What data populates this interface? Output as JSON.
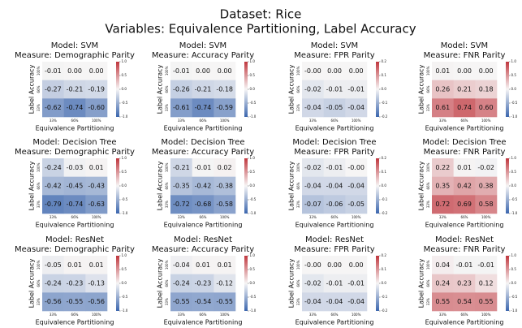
{
  "title": "Dataset: Rice",
  "subtitle": "Variables: Equivalence Partitioning, Label Accuracy",
  "chart_data": [
    {
      "type": "heatmap",
      "title": "Model: SVM",
      "subtitle": "Measure: Demographic Parity",
      "x_label": "Equivalence Partitioning",
      "y_label": "Label Accuracy",
      "x_categories": [
        "33%",
        "66%",
        "100%"
      ],
      "y_categories": [
        "100%",
        "66%",
        "33%"
      ],
      "values": [
        [
          -0.01,
          0,
          0
        ],
        [
          -0.27,
          -0.21,
          -0.19
        ],
        [
          -0.62,
          -0.74,
          -0.6
        ]
      ],
      "value_labels": [
        [
          "-0.01",
          "0.00",
          "0.00"
        ],
        [
          "-0.27",
          "-0.21",
          "-0.19"
        ],
        [
          "-0.62",
          "-0.74",
          "-0.60"
        ]
      ],
      "zlim": [
        -1,
        1
      ],
      "zticks": [
        {
          "value": 1,
          "label": "1.0"
        },
        {
          "value": 0.5,
          "label": "0.5"
        },
        {
          "value": 0,
          "label": "0.0"
        },
        {
          "value": -0.5,
          "label": "-0.5"
        },
        {
          "value": -1,
          "label": "-1.0"
        }
      ],
      "colors": [
        "#3b66ae",
        "#f6f5f5",
        "#c0363d"
      ]
    },
    {
      "type": "heatmap",
      "title": "Model: SVM",
      "subtitle": "Measure: Accuracy Parity",
      "x_label": "Equivalence Partitioning",
      "y_label": "Label Accuracy",
      "x_categories": [
        "33%",
        "66%",
        "100%"
      ],
      "y_categories": [
        "100%",
        "66%",
        "33%"
      ],
      "values": [
        [
          -0.01,
          0,
          0
        ],
        [
          -0.26,
          -0.21,
          -0.18
        ],
        [
          -0.61,
          -0.74,
          -0.59
        ]
      ],
      "value_labels": [
        [
          "-0.01",
          "0.00",
          "0.00"
        ],
        [
          "-0.26",
          "-0.21",
          "-0.18"
        ],
        [
          "-0.61",
          "-0.74",
          "-0.59"
        ]
      ],
      "zlim": [
        -1,
        1
      ],
      "zticks": [
        {
          "value": 1,
          "label": "1.0"
        },
        {
          "value": 0.5,
          "label": "0.5"
        },
        {
          "value": 0,
          "label": "0.0"
        },
        {
          "value": -0.5,
          "label": "-0.5"
        },
        {
          "value": -1,
          "label": "-1.0"
        }
      ],
      "colors": [
        "#3b66ae",
        "#f6f5f5",
        "#c0363d"
      ]
    },
    {
      "type": "heatmap",
      "title": "Model: SVM",
      "subtitle": "Measure: FPR Parity",
      "x_label": "Equivalence Partitioning",
      "y_label": "Label Accuracy",
      "x_categories": [
        "33%",
        "66%",
        "100%"
      ],
      "y_categories": [
        "100%",
        "66%",
        "33%"
      ],
      "values": [
        [
          0,
          0,
          0
        ],
        [
          -0.02,
          -0.01,
          -0.01
        ],
        [
          -0.04,
          -0.05,
          -0.04
        ]
      ],
      "value_labels": [
        [
          "-0.00",
          "0.00",
          "0.00"
        ],
        [
          "-0.02",
          "-0.01",
          "-0.01"
        ],
        [
          "-0.04",
          "-0.05",
          "-0.04"
        ]
      ],
      "zlim": [
        -0.2,
        0.2
      ],
      "zticks": [
        0.2,
        0.1,
        {
          "value": 0,
          "label": "0.0"
        },
        -0.1,
        -0.2
      ],
      "colors": [
        "#3b66ae",
        "#f6f5f5",
        "#c0363d"
      ]
    },
    {
      "type": "heatmap",
      "title": "Model: SVM",
      "subtitle": "Measure: FNR Parity",
      "x_label": "Equivalence Partitioning",
      "y_label": "Label Accuracy",
      "x_categories": [
        "33%",
        "66%",
        "100%"
      ],
      "y_categories": [
        "100%",
        "66%",
        "33%"
      ],
      "values": [
        [
          0.01,
          0,
          0
        ],
        [
          0.26,
          0.21,
          0.18
        ],
        [
          0.61,
          0.74,
          0.6
        ]
      ],
      "value_labels": [
        [
          "0.01",
          "0.00",
          "0.00"
        ],
        [
          "0.26",
          "0.21",
          "0.18"
        ],
        [
          "0.61",
          "0.74",
          "0.60"
        ]
      ],
      "zlim": [
        -1,
        1
      ],
      "zticks": [
        {
          "value": 1,
          "label": "1.0"
        },
        {
          "value": 0.5,
          "label": "0.5"
        },
        {
          "value": 0,
          "label": "0.0"
        },
        {
          "value": -0.5,
          "label": "-0.5"
        },
        {
          "value": -1,
          "label": "-1.0"
        }
      ],
      "colors": [
        "#3b66ae",
        "#f6f5f5",
        "#c0363d"
      ]
    },
    {
      "type": "heatmap",
      "title": "Model: Decision Tree",
      "subtitle": "Measure: Demographic Parity",
      "x_label": "Equivalence Partitioning",
      "y_label": "Label Accuracy",
      "x_categories": [
        "33%",
        "66%",
        "100%"
      ],
      "y_categories": [
        "100%",
        "66%",
        "33%"
      ],
      "values": [
        [
          -0.24,
          -0.03,
          0.01
        ],
        [
          -0.42,
          -0.45,
          -0.43
        ],
        [
          -0.79,
          -0.74,
          -0.63
        ]
      ],
      "value_labels": [
        [
          "-0.24",
          "-0.03",
          "0.01"
        ],
        [
          "-0.42",
          "-0.45",
          "-0.43"
        ],
        [
          "-0.79",
          "-0.74",
          "-0.63"
        ]
      ],
      "zlim": [
        -1,
        1
      ],
      "zticks": [
        {
          "value": 1,
          "label": "1.0"
        },
        {
          "value": 0.5,
          "label": "0.5"
        },
        {
          "value": 0,
          "label": "0.0"
        },
        {
          "value": -0.5,
          "label": "-0.5"
        },
        {
          "value": -1,
          "label": "-1.0"
        }
      ],
      "colors": [
        "#3b66ae",
        "#f6f5f5",
        "#c0363d"
      ]
    },
    {
      "type": "heatmap",
      "title": "Model: Decision Tree",
      "subtitle": "Measure: Accuracy Parity",
      "x_label": "Equivalence Partitioning",
      "y_label": "Label Accuracy",
      "x_categories": [
        "33%",
        "66%",
        "100%"
      ],
      "y_categories": [
        "100%",
        "66%",
        "33%"
      ],
      "values": [
        [
          -0.21,
          -0.01,
          0.02
        ],
        [
          -0.35,
          -0.42,
          -0.38
        ],
        [
          -0.72,
          -0.68,
          -0.58
        ]
      ],
      "value_labels": [
        [
          "-0.21",
          "-0.01",
          "0.02"
        ],
        [
          "-0.35",
          "-0.42",
          "-0.38"
        ],
        [
          "-0.72",
          "-0.68",
          "-0.58"
        ]
      ],
      "zlim": [
        -1,
        1
      ],
      "zticks": [
        {
          "value": 1,
          "label": "1.0"
        },
        {
          "value": 0.5,
          "label": "0.5"
        },
        {
          "value": 0,
          "label": "0.0"
        },
        {
          "value": -0.5,
          "label": "-0.5"
        },
        {
          "value": -1,
          "label": "-1.0"
        }
      ],
      "colors": [
        "#3b66ae",
        "#f6f5f5",
        "#c0363d"
      ]
    },
    {
      "type": "heatmap",
      "title": "Model: Decision Tree",
      "subtitle": "Measure: FPR Parity",
      "x_label": "Equivalence Partitioning",
      "y_label": "Label Accuracy",
      "x_categories": [
        "33%",
        "66%",
        "100%"
      ],
      "y_categories": [
        "100%",
        "66%",
        "33%"
      ],
      "values": [
        [
          -0.02,
          -0.01,
          0
        ],
        [
          -0.04,
          -0.04,
          -0.04
        ],
        [
          -0.07,
          -0.06,
          -0.05
        ]
      ],
      "value_labels": [
        [
          "-0.02",
          "-0.01",
          "-0.00"
        ],
        [
          "-0.04",
          "-0.04",
          "-0.04"
        ],
        [
          "-0.07",
          "-0.06",
          "-0.05"
        ]
      ],
      "zlim": [
        -0.2,
        0.2
      ],
      "zticks": [
        0.2,
        0.1,
        {
          "value": 0,
          "label": "0.0"
        },
        -0.1,
        -0.2
      ],
      "colors": [
        "#3b66ae",
        "#f6f5f5",
        "#c0363d"
      ]
    },
    {
      "type": "heatmap",
      "title": "Model: Decision Tree",
      "subtitle": "Measure: FNR Parity",
      "x_label": "Equivalence Partitioning",
      "y_label": "Label Accuracy",
      "x_categories": [
        "33%",
        "66%",
        "100%"
      ],
      "y_categories": [
        "100%",
        "66%",
        "33%"
      ],
      "values": [
        [
          0.22,
          0.01,
          -0.02
        ],
        [
          0.35,
          0.42,
          0.38
        ],
        [
          0.72,
          0.69,
          0.58
        ]
      ],
      "value_labels": [
        [
          "0.22",
          "0.01",
          "-0.02"
        ],
        [
          "0.35",
          "0.42",
          "0.38"
        ],
        [
          "0.72",
          "0.69",
          "0.58"
        ]
      ],
      "zlim": [
        -1,
        1
      ],
      "zticks": [
        {
          "value": 1,
          "label": "1.0"
        },
        {
          "value": 0.5,
          "label": "0.5"
        },
        {
          "value": 0,
          "label": "0.0"
        },
        {
          "value": -0.5,
          "label": "-0.5"
        },
        {
          "value": -1,
          "label": "-1.0"
        }
      ],
      "colors": [
        "#3b66ae",
        "#f6f5f5",
        "#c0363d"
      ]
    },
    {
      "type": "heatmap",
      "title": "Model: ResNet",
      "subtitle": "Measure: Demographic Parity",
      "x_label": "Equivalence Partitioning",
      "y_label": "Label Accuracy",
      "x_categories": [
        "33%",
        "66%",
        "100%"
      ],
      "y_categories": [
        "100%",
        "66%",
        "33%"
      ],
      "values": [
        [
          -0.05,
          0.01,
          0.01
        ],
        [
          -0.24,
          -0.23,
          -0.13
        ],
        [
          -0.56,
          -0.55,
          -0.56
        ]
      ],
      "value_labels": [
        [
          "-0.05",
          "0.01",
          "0.01"
        ],
        [
          "-0.24",
          "-0.23",
          "-0.13"
        ],
        [
          "-0.56",
          "-0.55",
          "-0.56"
        ]
      ],
      "zlim": [
        -1,
        1
      ],
      "zticks": [
        {
          "value": 1,
          "label": "1.0"
        },
        {
          "value": 0.5,
          "label": "0.5"
        },
        {
          "value": 0,
          "label": "0.0"
        },
        {
          "value": -0.5,
          "label": "-0.5"
        },
        {
          "value": -1,
          "label": "-1.0"
        }
      ],
      "colors": [
        "#3b66ae",
        "#f6f5f5",
        "#c0363d"
      ]
    },
    {
      "type": "heatmap",
      "title": "Model: ResNet",
      "subtitle": "Measure: Accuracy Parity",
      "x_label": "Equivalence Partitioning",
      "y_label": "Label Accuracy",
      "x_categories": [
        "33%",
        "66%",
        "100%"
      ],
      "y_categories": [
        "100%",
        "66%",
        "33%"
      ],
      "values": [
        [
          -0.04,
          0.01,
          0.01
        ],
        [
          -0.24,
          -0.23,
          -0.12
        ],
        [
          -0.55,
          -0.54,
          -0.55
        ]
      ],
      "value_labels": [
        [
          "-0.04",
          "0.01",
          "0.01"
        ],
        [
          "-0.24",
          "-0.23",
          "-0.12"
        ],
        [
          "-0.55",
          "-0.54",
          "-0.55"
        ]
      ],
      "zlim": [
        -1,
        1
      ],
      "zticks": [
        {
          "value": 1,
          "label": "1.0"
        },
        {
          "value": 0.5,
          "label": "0.5"
        },
        {
          "value": 0,
          "label": "0.0"
        },
        {
          "value": -0.5,
          "label": "-0.5"
        },
        {
          "value": -1,
          "label": "-1.0"
        }
      ],
      "colors": [
        "#3b66ae",
        "#f6f5f5",
        "#c0363d"
      ]
    },
    {
      "type": "heatmap",
      "title": "Model: ResNet",
      "subtitle": "Measure: FPR Parity",
      "x_label": "Equivalence Partitioning",
      "y_label": "Label Accuracy",
      "x_categories": [
        "33%",
        "66%",
        "100%"
      ],
      "y_categories": [
        "100%",
        "66%",
        "33%"
      ],
      "values": [
        [
          0,
          0,
          0
        ],
        [
          -0.02,
          -0.01,
          -0.01
        ],
        [
          -0.04,
          -0.04,
          -0.04
        ]
      ],
      "value_labels": [
        [
          "-0.00",
          "0.00",
          "0.00"
        ],
        [
          "-0.02",
          "-0.01",
          "-0.01"
        ],
        [
          "-0.04",
          "-0.04",
          "-0.04"
        ]
      ],
      "zlim": [
        -0.2,
        0.2
      ],
      "zticks": [
        0.2,
        0.1,
        {
          "value": 0,
          "label": "0.0"
        },
        -0.1,
        -0.2
      ],
      "colors": [
        "#3b66ae",
        "#f6f5f5",
        "#c0363d"
      ]
    },
    {
      "type": "heatmap",
      "title": "Model: ResNet",
      "subtitle": "Measure: FNR Parity",
      "x_label": "Equivalence Partitioning",
      "y_label": "Label Accuracy",
      "x_categories": [
        "33%",
        "66%",
        "100%"
      ],
      "y_categories": [
        "100%",
        "66%",
        "33%"
      ],
      "values": [
        [
          0.04,
          -0.01,
          -0.01
        ],
        [
          0.24,
          0.23,
          0.12
        ],
        [
          0.55,
          0.54,
          0.55
        ]
      ],
      "value_labels": [
        [
          "0.04",
          "-0.01",
          "-0.01"
        ],
        [
          "0.24",
          "0.23",
          "0.12"
        ],
        [
          "0.55",
          "0.54",
          "0.55"
        ]
      ],
      "zlim": [
        -1,
        1
      ],
      "zticks": [
        {
          "value": 1,
          "label": "1.0"
        },
        {
          "value": 0.5,
          "label": "0.5"
        },
        {
          "value": 0,
          "label": "0.0"
        },
        {
          "value": -0.5,
          "label": "-0.5"
        },
        {
          "value": -1,
          "label": "-1.0"
        }
      ],
      "colors": [
        "#3b66ae",
        "#f6f5f5",
        "#c0363d"
      ]
    }
  ]
}
